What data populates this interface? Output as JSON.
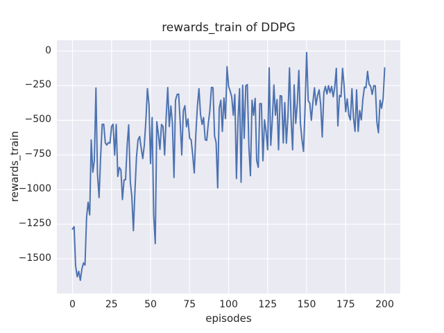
{
  "figure": {
    "background": "#ffffff"
  },
  "chart_data": {
    "type": "line",
    "title": "rewards_train of DDPG",
    "xlabel": "episodes",
    "ylabel": "rewards_train",
    "x_ticks": [
      0,
      25,
      50,
      75,
      100,
      125,
      150,
      175,
      200
    ],
    "y_ticks": [
      0,
      -250,
      -500,
      -750,
      -1000,
      -1250,
      -1500
    ],
    "xlim": [
      -10,
      210
    ],
    "ylim": [
      -1750,
      78
    ],
    "grid": true,
    "legend_position": "none",
    "style": {
      "axes_background": "#eaeaf2",
      "grid_color": "#ffffff",
      "line_color": "#4c72b0",
      "text_color": "#262626",
      "line_width": 2
    },
    "series": [
      {
        "name": "rewards_train",
        "x_start": 0,
        "x_step": 1,
        "values": [
          -1285,
          -1268,
          -1550,
          -1630,
          -1590,
          -1655,
          -1575,
          -1530,
          -1545,
          -1200,
          -1092,
          -1183,
          -642,
          -875,
          -790,
          -267,
          -885,
          -1058,
          -770,
          -530,
          -528,
          -663,
          -678,
          -660,
          -665,
          -545,
          -528,
          -751,
          -530,
          -905,
          -840,
          -860,
          -1072,
          -930,
          -929,
          -680,
          -533,
          -942,
          -1050,
          -1297,
          -1012,
          -760,
          -640,
          -617,
          -700,
          -776,
          -680,
          -500,
          -271,
          -390,
          -813,
          -480,
          -1180,
          -1390,
          -510,
          -600,
          -710,
          -530,
          -545,
          -750,
          -480,
          -263,
          -545,
          -397,
          -520,
          -913,
          -355,
          -313,
          -310,
          -520,
          -750,
          -430,
          -395,
          -547,
          -490,
          -630,
          -640,
          -750,
          -880,
          -600,
          -400,
          -271,
          -455,
          -530,
          -480,
          -640,
          -645,
          -520,
          -430,
          -262,
          -265,
          -613,
          -660,
          -988,
          -413,
          -355,
          -580,
          -338,
          -488,
          -113,
          -255,
          -290,
          -330,
          -463,
          -313,
          -920,
          -505,
          -272,
          -947,
          -247,
          -630,
          -250,
          -242,
          -695,
          -900,
          -355,
          -463,
          -342,
          -790,
          -840,
          -380,
          -380,
          -792,
          -497,
          -580,
          -713,
          -122,
          -680,
          -500,
          -245,
          -463,
          -350,
          -713,
          -322,
          -325,
          -663,
          -372,
          -665,
          -480,
          -122,
          -480,
          -713,
          -245,
          -522,
          -380,
          -140,
          -520,
          -642,
          -725,
          -400,
          -10,
          -360,
          -375,
          -500,
          -370,
          -265,
          -390,
          -320,
          -280,
          -390,
          -620,
          -300,
          -255,
          -310,
          -250,
          -300,
          -255,
          -330,
          -260,
          -125,
          -540,
          -320,
          -330,
          -125,
          -250,
          -438,
          -345,
          -463,
          -497,
          -272,
          -480,
          -580,
          -280,
          -580,
          -430,
          -497,
          -350,
          -260,
          -265,
          -147,
          -240,
          -255,
          -313,
          -250,
          -252,
          -513,
          -590,
          -355,
          -413,
          -340,
          -122
        ]
      }
    ]
  }
}
